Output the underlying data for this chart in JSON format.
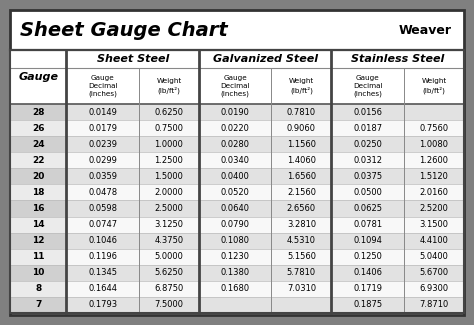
{
  "title": "Sheet Gauge Chart",
  "background_outer": "#808080",
  "background_inner": "#ffffff",
  "row_bg_even": "#e2e2e2",
  "row_bg_odd": "#f8f8f8",
  "gauge_col_bg_even": "#d0d0d0",
  "gauge_col_bg_odd": "#ebebeb",
  "header_bg": "#ffffff",
  "col_headers": [
    "Sheet Steel",
    "Galvanized Steel",
    "Stainless Steel"
  ],
  "gauges": [
    28,
    26,
    24,
    22,
    20,
    18,
    16,
    14,
    12,
    11,
    10,
    8,
    7
  ],
  "sheet_steel": [
    [
      "0.0149",
      "0.6250"
    ],
    [
      "0.0179",
      "0.7500"
    ],
    [
      "0.0239",
      "1.0000"
    ],
    [
      "0.0299",
      "1.2500"
    ],
    [
      "0.0359",
      "1.5000"
    ],
    [
      "0.0478",
      "2.0000"
    ],
    [
      "0.0598",
      "2.5000"
    ],
    [
      "0.0747",
      "3.1250"
    ],
    [
      "0.1046",
      "4.3750"
    ],
    [
      "0.1196",
      "5.0000"
    ],
    [
      "0.1345",
      "5.6250"
    ],
    [
      "0.1644",
      "6.8750"
    ],
    [
      "0.1793",
      "7.5000"
    ]
  ],
  "galvanized_steel": [
    [
      "0.0190",
      "0.7810"
    ],
    [
      "0.0220",
      "0.9060"
    ],
    [
      "0.0280",
      "1.1560"
    ],
    [
      "0.0340",
      "1.4060"
    ],
    [
      "0.0400",
      "1.6560"
    ],
    [
      "0.0520",
      "2.1560"
    ],
    [
      "0.0640",
      "2.6560"
    ],
    [
      "0.0790",
      "3.2810"
    ],
    [
      "0.1080",
      "4.5310"
    ],
    [
      "0.1230",
      "5.1560"
    ],
    [
      "0.1380",
      "5.7810"
    ],
    [
      "0.1680",
      "7.0310"
    ],
    [
      "",
      ""
    ]
  ],
  "stainless_steel": [
    [
      "0.0156",
      ""
    ],
    [
      "0.0187",
      "0.7560"
    ],
    [
      "0.0250",
      "1.0080"
    ],
    [
      "0.0312",
      "1.2600"
    ],
    [
      "0.0375",
      "1.5120"
    ],
    [
      "0.0500",
      "2.0160"
    ],
    [
      "0.0625",
      "2.5200"
    ],
    [
      "0.0781",
      "3.1500"
    ],
    [
      "0.1094",
      "4.4100"
    ],
    [
      "0.1250",
      "5.0400"
    ],
    [
      "0.1406",
      "5.6700"
    ],
    [
      "0.1719",
      "6.9300"
    ],
    [
      "0.1875",
      "7.8710"
    ]
  ]
}
